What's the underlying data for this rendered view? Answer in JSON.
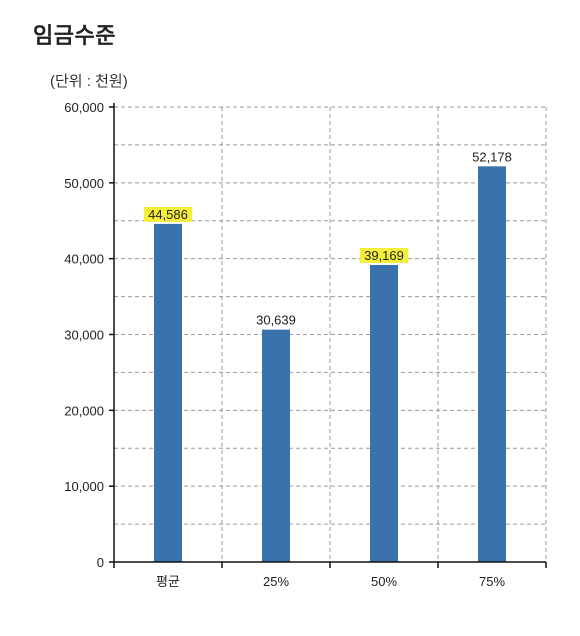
{
  "title": "임금수준",
  "unit_label": "(단위 : 천원)",
  "chart_data": {
    "type": "bar",
    "categories": [
      "평균",
      "25%",
      "50%",
      "75%"
    ],
    "values": [
      44586,
      30639,
      39169,
      52178
    ],
    "value_labels": [
      "44,586",
      "30,639",
      "39,169",
      "52,178"
    ],
    "highlighted": [
      true,
      false,
      true,
      false
    ],
    "ylim": [
      0,
      60000
    ],
    "yticks": [
      0,
      10000,
      20000,
      30000,
      40000,
      50000,
      60000
    ],
    "ytick_labels": [
      "0",
      "10,000",
      "20,000",
      "30,000",
      "40,000",
      "50,000",
      "60,000"
    ],
    "grid": true,
    "bar_color": "#3a72ae",
    "highlight_color": "#f6ef3a"
  }
}
